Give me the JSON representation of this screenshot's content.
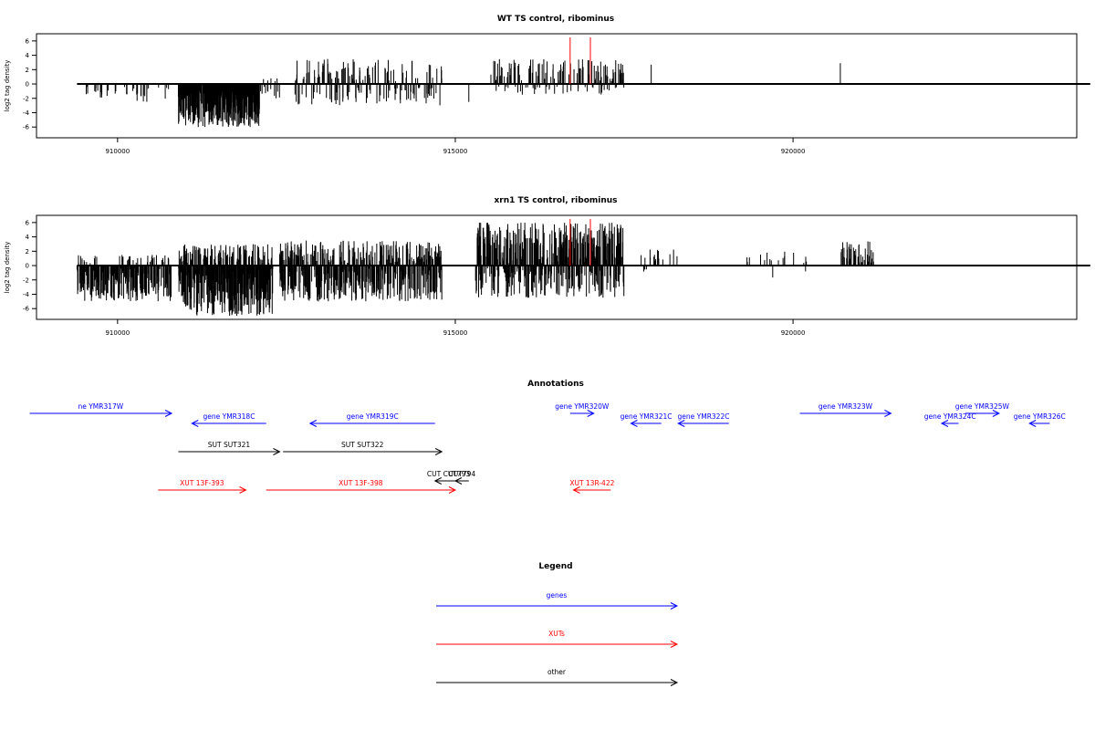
{
  "panels": [
    {
      "title": "WT TS control, ribominus",
      "ylabel": "log2 tag density",
      "yticks": [
        6,
        4,
        2,
        0,
        -2,
        -4,
        -6
      ],
      "xticks": [
        910000,
        915000,
        920000
      ],
      "chart_data": {
        "type": "bar",
        "xlim": [
          908800,
          924200
        ],
        "ylim": [
          -7.5,
          7
        ],
        "baseline_range": [
          909400,
          924400
        ],
        "markers": [
          916700,
          917000
        ],
        "segments": [
          {
            "x0": 909500,
            "x1": 910800,
            "density": 0.08,
            "lo": -2.5,
            "hi": 0
          },
          {
            "x0": 910900,
            "x1": 912100,
            "density": 0.7,
            "lo": -6,
            "hi": -1
          },
          {
            "x0": 912100,
            "x1": 912400,
            "density": 0.15,
            "lo": -2,
            "hi": 1
          },
          {
            "x0": 912600,
            "x1": 914800,
            "density": 0.25,
            "lo": -3,
            "hi": 3.5
          },
          {
            "x0": 915500,
            "x1": 917500,
            "density": 0.25,
            "lo": -1.5,
            "hi": 3.5
          }
        ],
        "spikes": [
          [
            917900,
            2.7
          ],
          [
            920700,
            2.9
          ],
          [
            915200,
            -2.5
          ],
          [
            912800,
            1.5
          ]
        ]
      }
    },
    {
      "title": "xrn1 TS control, ribominus",
      "ylabel": "log2 tag density",
      "yticks": [
        6,
        4,
        2,
        0,
        -2,
        -4,
        -6
      ],
      "xticks": [
        910000,
        915000,
        920000
      ],
      "chart_data": {
        "type": "bar",
        "xlim": [
          908800,
          924200
        ],
        "ylim": [
          -7.5,
          7
        ],
        "baseline_range": [
          909400,
          924400
        ],
        "markers": [
          916700,
          917000
        ],
        "segments": [
          {
            "x0": 909400,
            "x1": 910800,
            "density": 0.5,
            "lo": -5,
            "hi": 1.5
          },
          {
            "x0": 910900,
            "x1": 912300,
            "density": 0.9,
            "lo": -7,
            "hi": 3
          },
          {
            "x0": 912400,
            "x1": 914800,
            "density": 0.7,
            "lo": -5,
            "hi": 3.5
          },
          {
            "x0": 915300,
            "x1": 917500,
            "density": 0.7,
            "lo": -4.5,
            "hi": 6
          },
          {
            "x0": 917700,
            "x1": 918300,
            "density": 0.1,
            "lo": -1,
            "hi": 2.5
          },
          {
            "x0": 919300,
            "x1": 920200,
            "density": 0.08,
            "lo": -2,
            "hi": 2
          },
          {
            "x0": 920700,
            "x1": 921200,
            "density": 0.3,
            "lo": 0,
            "hi": 3.5
          }
        ],
        "spikes": []
      }
    }
  ],
  "annotations": {
    "title": "Annotations",
    "colors": {
      "genes": "#0000ff",
      "xuts": "#ff0000",
      "other": "#000000"
    },
    "features": [
      {
        "label": "ne YMR317W",
        "kind": "genes",
        "x0": 908700,
        "x1": 910800,
        "dir": "right",
        "row": 0
      },
      {
        "label": "gene YMR318C",
        "kind": "genes",
        "x0": 911100,
        "x1": 912200,
        "dir": "left",
        "row": 1
      },
      {
        "label": "gene YMR319C",
        "kind": "genes",
        "x0": 912850,
        "x1": 914700,
        "dir": "left",
        "row": 1
      },
      {
        "label": "gene YMR320W",
        "kind": "genes",
        "x0": 916700,
        "x1": 917050,
        "dir": "right",
        "row": 0
      },
      {
        "label": "gene YMR321C",
        "kind": "genes",
        "x0": 917600,
        "x1": 918050,
        "dir": "left",
        "row": 1
      },
      {
        "label": "gene YMR322C",
        "kind": "genes",
        "x0": 918300,
        "x1": 919050,
        "dir": "left",
        "row": 1
      },
      {
        "label": "gene YMR323W",
        "kind": "genes",
        "x0": 920100,
        "x1": 921450,
        "dir": "right",
        "row": 0
      },
      {
        "label": "gene YMR325W",
        "kind": "genes",
        "x0": 922550,
        "x1": 923050,
        "dir": "right",
        "row": 0
      },
      {
        "label": "gene YMR324C",
        "kind": "genes",
        "x0": 922200,
        "x1": 922450,
        "dir": "left",
        "row": 1
      },
      {
        "label": "gene YMR326C",
        "kind": "genes",
        "x0": 923500,
        "x1": 923800,
        "dir": "left",
        "row": 1
      },
      {
        "label": "SUT SUT321",
        "kind": "other",
        "x0": 910900,
        "x1": 912400,
        "dir": "right",
        "row": 2
      },
      {
        "label": "SUT SUT322",
        "kind": "other",
        "x0": 912450,
        "x1": 914800,
        "dir": "right",
        "row": 2
      },
      {
        "label": "CUT CUT793",
        "kind": "other",
        "x0": 914700,
        "x1": 915100,
        "dir": "left",
        "row": 3
      },
      {
        "label": "CUT794",
        "kind": "other",
        "x0": 915000,
        "x1": 915200,
        "dir": "left",
        "row": 3
      },
      {
        "label": "XUT 13F-393",
        "kind": "xuts",
        "x0": 910600,
        "x1": 911900,
        "dir": "right",
        "row": 4
      },
      {
        "label": "XUT 13F-398",
        "kind": "xuts",
        "x0": 912200,
        "x1": 915000,
        "dir": "right",
        "row": 4
      },
      {
        "label": "XUT 13R-422",
        "kind": "xuts",
        "x0": 916750,
        "x1": 917300,
        "dir": "left",
        "row": 4
      }
    ]
  },
  "legend": {
    "title": "Legend",
    "items": [
      {
        "label": "genes",
        "kind": "genes"
      },
      {
        "label": "XUTs",
        "kind": "xuts"
      },
      {
        "label": "other",
        "kind": "other"
      }
    ]
  }
}
